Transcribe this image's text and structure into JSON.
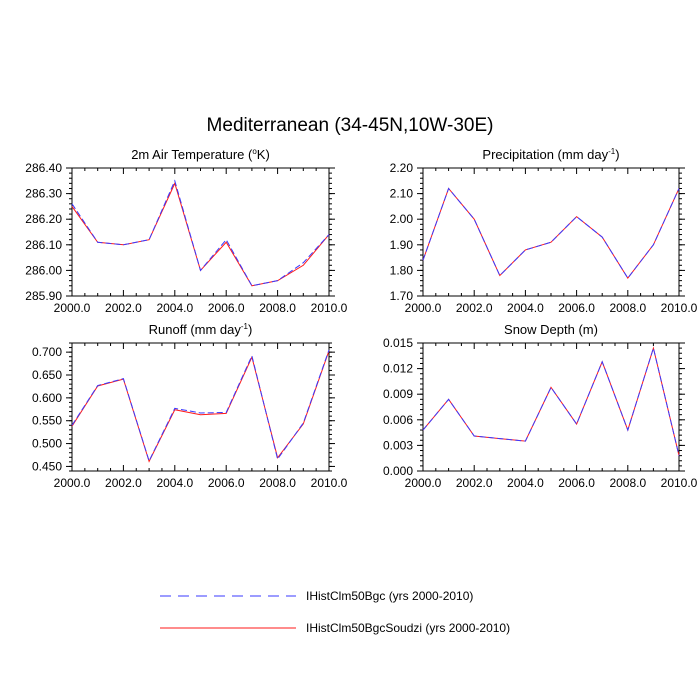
{
  "page": {
    "title": "Mediterranean (34-45N,10W-30E)"
  },
  "legend": {
    "items": [
      {
        "label": "IHistClm50Bgc (yrs 2000-2010)",
        "color": "#3a3aff",
        "dashed": true
      },
      {
        "label": "IHistClm50BgcSoudzi (yrs 2000-2010)",
        "color": "#ff1a1a",
        "dashed": false
      }
    ]
  },
  "chart_data": [
    {
      "type": "line",
      "title_main": "2m Air Temperature (",
      "title_sup": "o",
      "title_tail": "K)",
      "x": [
        2000,
        2001,
        2002,
        2003,
        2004,
        2005,
        2006,
        2007,
        2008,
        2009,
        2010
      ],
      "xlim": [
        2000,
        2010
      ],
      "ylim": [
        285.9,
        286.4
      ],
      "xticks": [
        "2000.0",
        "2002.0",
        "2004.0",
        "2006.0",
        "2008.0",
        "2010.0"
      ],
      "yticks": [
        "285.90",
        "286.00",
        "286.10",
        "286.20",
        "286.30",
        "286.40"
      ],
      "series": [
        {
          "values": [
            286.26,
            286.11,
            286.1,
            286.12,
            286.35,
            286.0,
            286.12,
            285.94,
            285.96,
            286.03,
            286.14
          ]
        },
        {
          "values": [
            286.25,
            286.11,
            286.1,
            286.12,
            286.34,
            286.0,
            286.11,
            285.94,
            285.96,
            286.02,
            286.14
          ]
        }
      ]
    },
    {
      "type": "line",
      "title_main": "Precipitation (mm day",
      "title_sup": "-1",
      "title_tail": ")",
      "x": [
        2000,
        2001,
        2002,
        2003,
        2004,
        2005,
        2006,
        2007,
        2008,
        2009,
        2010
      ],
      "xlim": [
        2000,
        2010
      ],
      "ylim": [
        1.7,
        2.2
      ],
      "xticks": [
        "2000.0",
        "2002.0",
        "2004.0",
        "2006.0",
        "2008.0",
        "2010.0"
      ],
      "yticks": [
        "1.70",
        "1.80",
        "1.90",
        "2.00",
        "2.10",
        "2.20"
      ],
      "series": [
        {
          "values": [
            1.84,
            2.12,
            2.0,
            1.78,
            1.88,
            1.91,
            2.01,
            1.93,
            1.77,
            1.9,
            2.12
          ]
        },
        {
          "values": [
            1.84,
            2.12,
            2.0,
            1.78,
            1.88,
            1.91,
            2.01,
            1.93,
            1.77,
            1.9,
            2.12
          ]
        }
      ]
    },
    {
      "type": "line",
      "title_main": "Runoff (mm day",
      "title_sup": "-1",
      "title_tail": ")",
      "x": [
        2000,
        2001,
        2002,
        2003,
        2004,
        2005,
        2006,
        2007,
        2008,
        2009,
        2010
      ],
      "xlim": [
        2000,
        2010
      ],
      "ylim": [
        0.44,
        0.72
      ],
      "xticks": [
        "2000.0",
        "2002.0",
        "2004.0",
        "2006.0",
        "2008.0",
        "2010.0"
      ],
      "yticks": [
        "0.450",
        "0.500",
        "0.550",
        "0.600",
        "0.650",
        "0.700"
      ],
      "series": [
        {
          "values": [
            0.54,
            0.627,
            0.642,
            0.462,
            0.577,
            0.567,
            0.568,
            0.692,
            0.466,
            0.545,
            0.705
          ]
        },
        {
          "values": [
            0.538,
            0.626,
            0.641,
            0.461,
            0.574,
            0.563,
            0.566,
            0.689,
            0.469,
            0.543,
            0.703
          ]
        }
      ]
    },
    {
      "type": "line",
      "title_main": "Snow Depth (m)",
      "title_sup": "",
      "title_tail": "",
      "x": [
        2000,
        2001,
        2002,
        2003,
        2004,
        2005,
        2006,
        2007,
        2008,
        2009,
        2010
      ],
      "xlim": [
        2000,
        2010
      ],
      "ylim": [
        0.0,
        0.015
      ],
      "xticks": [
        "2000.0",
        "2002.0",
        "2004.0",
        "2006.0",
        "2008.0",
        "2010.0"
      ],
      "yticks": [
        "0.000",
        "0.003",
        "0.006",
        "0.009",
        "0.012",
        "0.015"
      ],
      "series": [
        {
          "values": [
            0.0048,
            0.0084,
            0.0041,
            0.0038,
            0.0035,
            0.0098,
            0.0055,
            0.0128,
            0.0048,
            0.0144,
            0.0018
          ]
        },
        {
          "values": [
            0.0048,
            0.0084,
            0.0041,
            0.0038,
            0.0035,
            0.0098,
            0.0055,
            0.0128,
            0.0048,
            0.0144,
            0.0018
          ]
        }
      ]
    }
  ]
}
